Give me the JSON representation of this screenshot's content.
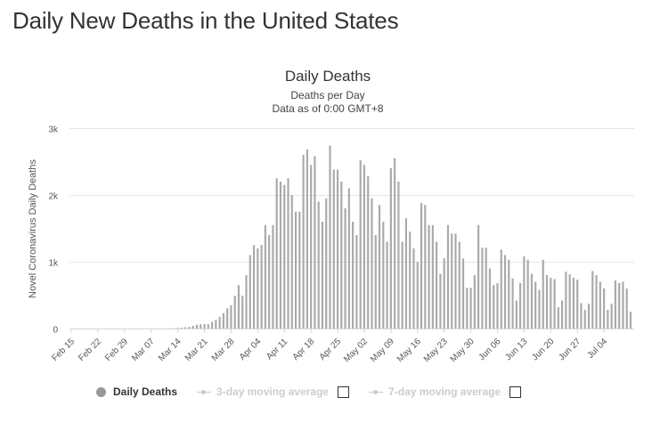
{
  "page": {
    "title": "Daily New Deaths in the United States"
  },
  "chart_data": {
    "type": "bar",
    "title": "Daily Deaths",
    "subtitle_lines": [
      "Deaths per Day",
      "Data as of 0:00 GMT+8"
    ],
    "ylabel": "Novel Coronavirus Daily Deaths",
    "ylim": [
      0,
      3000
    ],
    "yticks": [
      {
        "value": 0,
        "label": "0"
      },
      {
        "value": 1000,
        "label": "1k"
      },
      {
        "value": 2000,
        "label": "2k"
      },
      {
        "value": 3000,
        "label": "3k"
      }
    ],
    "x_start_date": "2020-02-15",
    "x_tick_labels": [
      "Feb 15",
      "Feb 22",
      "Feb 29",
      "Mar 07",
      "Mar 14",
      "Mar 21",
      "Mar 28",
      "Apr 04",
      "Apr 11",
      "Apr 18",
      "Apr 25",
      "May 02",
      "May 09",
      "May 16",
      "May 23",
      "May 30",
      "Jun 06",
      "Jun 13",
      "Jun 20",
      "Jun 27",
      "Jul 04"
    ],
    "grid": true,
    "bar_color": "#a9a9a9",
    "series": [
      {
        "name": "Daily Deaths",
        "values": [
          0,
          0,
          0,
          0,
          0,
          0,
          0,
          0,
          0,
          0,
          0,
          0,
          0,
          0,
          1,
          0,
          1,
          0,
          1,
          0,
          2,
          1,
          2,
          2,
          1,
          2,
          5,
          4,
          9,
          14,
          20,
          25,
          40,
          55,
          63,
          67,
          65,
          100,
          130,
          175,
          230,
          300,
          350,
          490,
          650,
          490,
          800,
          1100,
          1250,
          1200,
          1250,
          1550,
          1400,
          1550,
          2250,
          2200,
          2150,
          2250,
          2000,
          1750,
          1750,
          2600,
          2680,
          2450,
          2580,
          1900,
          1600,
          1950,
          2740,
          2380,
          2380,
          2200,
          1800,
          2100,
          1600,
          1400,
          2520,
          2450,
          2280,
          1950,
          1400,
          1850,
          1600,
          1300,
          2400,
          2550,
          2200,
          1300,
          1650,
          1450,
          1200,
          1000,
          1880,
          1850,
          1550,
          1550,
          1300,
          820,
          1050,
          1550,
          1420,
          1420,
          1300,
          1050,
          610,
          610,
          800,
          1550,
          1210,
          1210,
          900,
          650,
          680,
          1180,
          1100,
          1030,
          750,
          420,
          680,
          1080,
          1030,
          820,
          700,
          580,
          1030,
          800,
          760,
          740,
          320,
          420,
          850,
          810,
          760,
          730,
          380,
          280,
          370,
          860,
          800,
          700,
          600,
          280,
          370,
          720,
          680,
          700,
          600,
          250
        ]
      }
    ],
    "legend": [
      {
        "label": "Daily Deaths",
        "active": true
      },
      {
        "label": "3-day moving average",
        "active": false
      },
      {
        "label": "7-day moving average",
        "active": false
      }
    ]
  }
}
